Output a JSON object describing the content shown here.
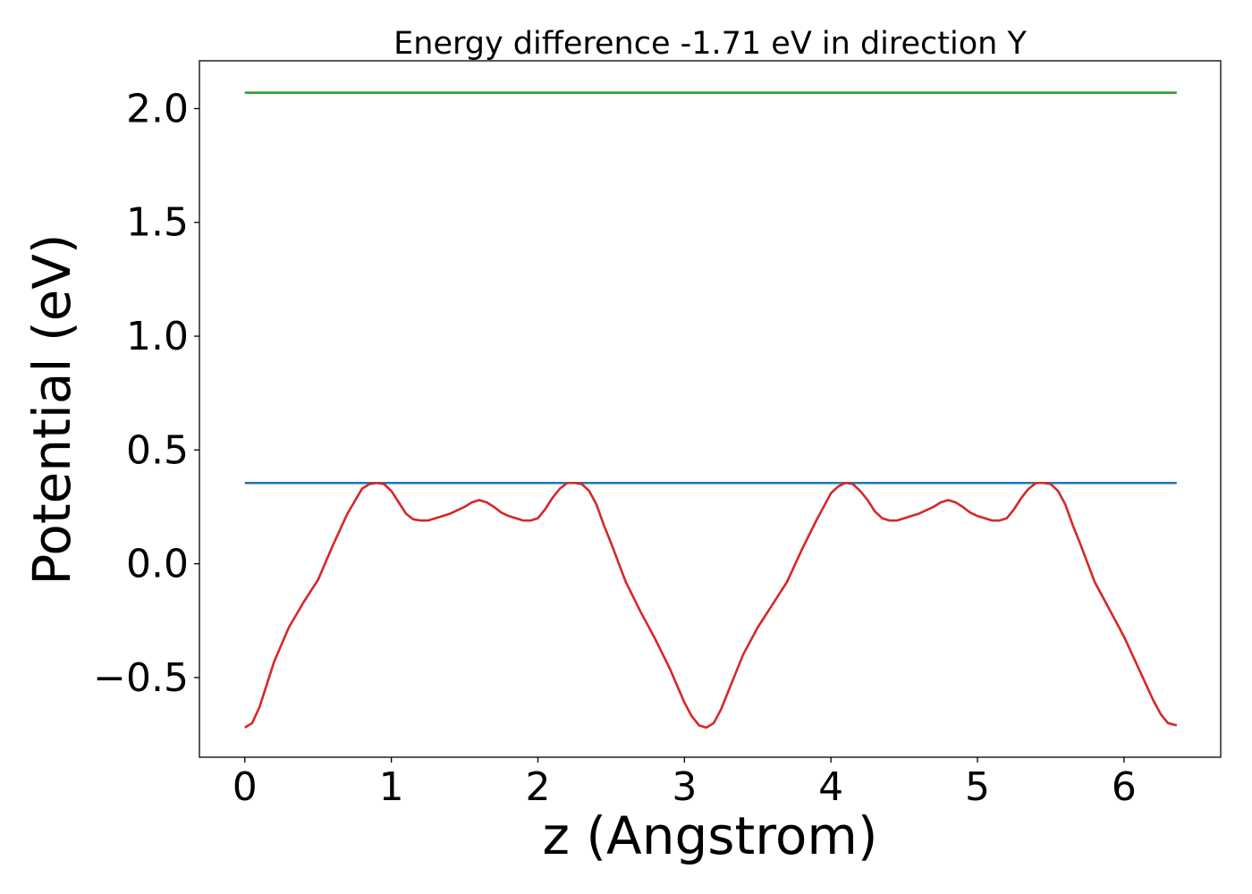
{
  "chart_data": {
    "type": "line",
    "title": "Energy difference -1.71 eV in direction Y",
    "xlabel": "z (Angstrom)",
    "ylabel": "Potential (eV)",
    "xlim": [
      -0.31,
      6.66
    ],
    "ylim": [
      -0.85,
      2.21
    ],
    "xticks": [
      0,
      1,
      2,
      3,
      4,
      5,
      6
    ],
    "xtick_labels": [
      "0",
      "1",
      "2",
      "3",
      "4",
      "5",
      "6"
    ],
    "yticks": [
      -0.5,
      0.0,
      0.5,
      1.0,
      1.5,
      2.0
    ],
    "ytick_labels": [
      "−0.5",
      "0.0",
      "0.5",
      "1.0",
      "1.5",
      "2.0"
    ],
    "grid": false,
    "series": [
      {
        "color": "#2ca02c",
        "x": [
          0,
          6.36
        ],
        "y": [
          2.07,
          2.07
        ]
      },
      {
        "color": "#1f77b4",
        "x": [
          0,
          6.36
        ],
        "y": [
          0.355,
          0.355
        ]
      },
      {
        "color": "#d62728",
        "x": [
          0,
          0.05,
          0.1,
          0.15,
          0.2,
          0.3,
          0.4,
          0.5,
          0.6,
          0.7,
          0.8,
          0.85,
          0.9,
          0.95,
          1.0,
          1.05,
          1.1,
          1.15,
          1.2,
          1.25,
          1.3,
          1.4,
          1.5,
          1.55,
          1.6,
          1.65,
          1.7,
          1.75,
          1.8,
          1.9,
          1.95,
          2.0,
          2.05,
          2.1,
          2.15,
          2.2,
          2.25,
          2.3,
          2.35,
          2.4,
          2.45,
          2.5,
          2.6,
          2.7,
          2.8,
          2.9,
          3.0,
          3.05,
          3.1,
          3.15,
          3.2,
          3.25,
          3.3,
          3.35,
          3.4,
          3.5,
          3.6,
          3.7,
          3.8,
          3.9,
          4.0,
          4.05,
          4.1,
          4.15,
          4.2,
          4.25,
          4.3,
          4.35,
          4.4,
          4.45,
          4.5,
          4.6,
          4.7,
          4.75,
          4.8,
          4.85,
          4.9,
          4.95,
          5.0,
          5.1,
          5.15,
          5.2,
          5.25,
          5.3,
          5.35,
          5.4,
          5.45,
          5.5,
          5.55,
          5.6,
          5.65,
          5.7,
          5.8,
          5.9,
          6.0,
          6.1,
          6.2,
          6.25,
          6.3,
          6.36
        ],
        "y": [
          -0.72,
          -0.7,
          -0.63,
          -0.53,
          -0.43,
          -0.28,
          -0.17,
          -0.07,
          0.08,
          0.22,
          0.33,
          0.35,
          0.355,
          0.35,
          0.32,
          0.27,
          0.22,
          0.195,
          0.19,
          0.19,
          0.2,
          0.22,
          0.25,
          0.27,
          0.28,
          0.27,
          0.25,
          0.225,
          0.21,
          0.19,
          0.19,
          0.2,
          0.24,
          0.29,
          0.33,
          0.355,
          0.355,
          0.35,
          0.32,
          0.26,
          0.17,
          0.09,
          -0.08,
          -0.21,
          -0.33,
          -0.46,
          -0.61,
          -0.67,
          -0.71,
          -0.72,
          -0.7,
          -0.64,
          -0.56,
          -0.48,
          -0.4,
          -0.28,
          -0.18,
          -0.08,
          0.06,
          0.19,
          0.31,
          0.34,
          0.355,
          0.35,
          0.32,
          0.28,
          0.23,
          0.2,
          0.19,
          0.19,
          0.2,
          0.22,
          0.25,
          0.27,
          0.28,
          0.27,
          0.25,
          0.225,
          0.21,
          0.19,
          0.19,
          0.2,
          0.24,
          0.29,
          0.33,
          0.355,
          0.355,
          0.35,
          0.32,
          0.26,
          0.17,
          0.09,
          -0.08,
          -0.2,
          -0.32,
          -0.46,
          -0.6,
          -0.66,
          -0.7,
          -0.71
        ]
      }
    ]
  }
}
